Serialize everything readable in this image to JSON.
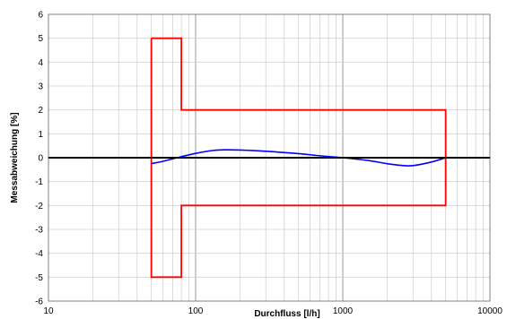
{
  "chart_data": {
    "type": "line",
    "title": "",
    "xlabel": "Durchfluss [l/h]",
    "ylabel": "Messabweichung [%]",
    "xscale": "log",
    "xlim": [
      10,
      10000
    ],
    "ylim": [
      -6,
      6
    ],
    "x_ticks": [
      "10",
      "100",
      "1000",
      "10000"
    ],
    "y_ticks": [
      "-6",
      "-5",
      "-4",
      "-3",
      "-2",
      "-1",
      "0",
      "1",
      "2",
      "3",
      "4",
      "5",
      "6"
    ],
    "grid": true,
    "legend": "none",
    "series": [
      {
        "color": "#ff0000",
        "style": "tolerance-envelope",
        "points": [
          [
            50,
            5
          ],
          [
            80,
            5
          ],
          [
            80,
            2
          ],
          [
            5000,
            2
          ],
          [
            5000,
            -2
          ],
          [
            80,
            -2
          ],
          [
            80,
            -5
          ],
          [
            50,
            -5
          ],
          [
            50,
            5
          ]
        ]
      },
      {
        "color": "#0000ff",
        "style": "measured-error",
        "points": [
          [
            50,
            -0.25
          ],
          [
            60,
            -0.15
          ],
          [
            75,
            0.0
          ],
          [
            100,
            0.18
          ],
          [
            130,
            0.3
          ],
          [
            160,
            0.33
          ],
          [
            200,
            0.32
          ],
          [
            300,
            0.27
          ],
          [
            500,
            0.17
          ],
          [
            700,
            0.08
          ],
          [
            1000,
            0.0
          ],
          [
            1500,
            -0.12
          ],
          [
            2000,
            -0.25
          ],
          [
            2500,
            -0.32
          ],
          [
            3000,
            -0.33
          ],
          [
            4000,
            -0.18
          ],
          [
            5000,
            0.0
          ]
        ]
      },
      {
        "color": "#000000",
        "style": "zero-line",
        "points": [
          [
            10,
            0
          ],
          [
            10000,
            0
          ]
        ]
      }
    ]
  }
}
